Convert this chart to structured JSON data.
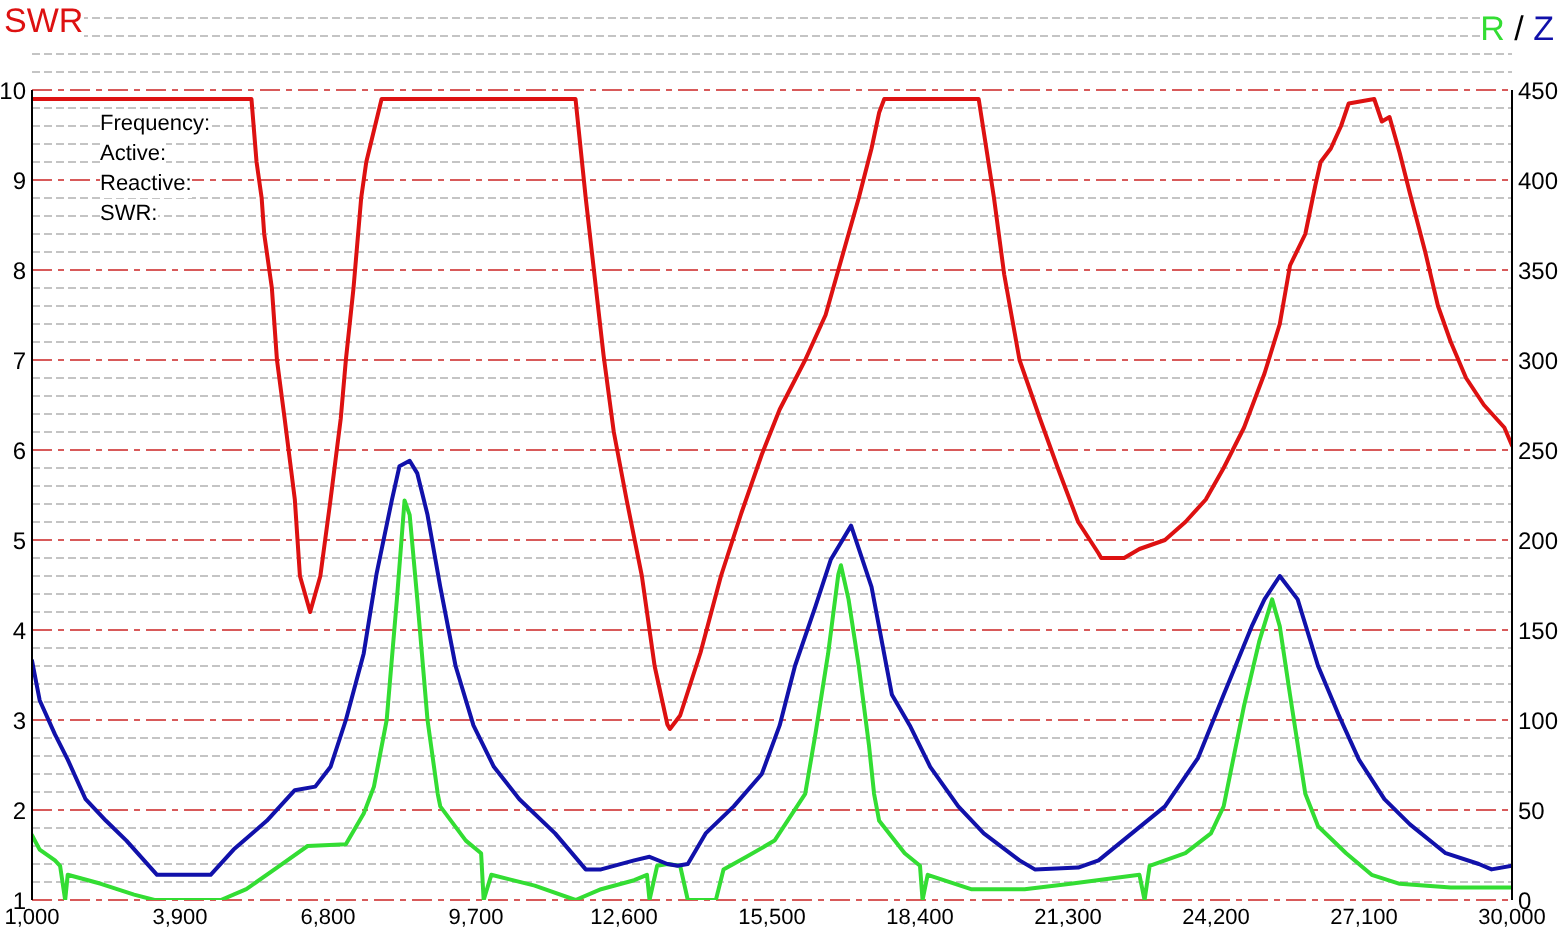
{
  "chart_data": {
    "type": "line",
    "ylabel": "SWR",
    "y2label": "R / Z",
    "annotations": [
      "Frequency:",
      "Active:",
      "Reactive:",
      "SWR:"
    ],
    "xlim": [
      1000,
      30000
    ],
    "xticks": [
      {
        "value": 1000,
        "label": "1,000"
      },
      {
        "value": 3900,
        "label": "3,900"
      },
      {
        "value": 6800,
        "label": "6,800"
      },
      {
        "value": 9700,
        "label": "9,700"
      },
      {
        "value": 12600,
        "label": "12,600"
      },
      {
        "value": 15500,
        "label": "15,500"
      },
      {
        "value": 18400,
        "label": "18,400"
      },
      {
        "value": 21300,
        "label": "21,300"
      },
      {
        "value": 24200,
        "label": "24,200"
      },
      {
        "value": 27100,
        "label": "27,100"
      },
      {
        "value": 30000,
        "label": "30,000"
      }
    ],
    "ylim": [
      1,
      10
    ],
    "yticks": [
      1,
      2,
      3,
      4,
      5,
      6,
      7,
      8,
      9,
      10
    ],
    "y2lim": [
      0,
      450
    ],
    "y2ticks": [
      0,
      50,
      100,
      150,
      200,
      250,
      300,
      350,
      400,
      450
    ],
    "grid": "y",
    "series": [
      {
        "color": "#dd1111",
        "x": [
          1000,
          5300,
          5400,
          5500,
          5550,
          5700,
          5800,
          5950,
          6150,
          6250,
          6450,
          6650,
          6850,
          7050,
          7150,
          7300,
          7450,
          7550,
          7850,
          11650,
          11850,
          12000,
          12200,
          12400,
          12650,
          12950,
          13200,
          13450,
          13500,
          13700,
          14100,
          14500,
          14900,
          15300,
          15650,
          16150,
          16550,
          16900,
          17200,
          17450,
          17600,
          17700,
          19550,
          19850,
          20050,
          20350,
          20750,
          21100,
          21500,
          21900,
          21950,
          22400,
          22700,
          23200,
          23600,
          24000,
          24350,
          24750,
          25150,
          25450,
          25650,
          25950,
          26150,
          26250,
          26450,
          26650,
          26800,
          27300,
          27450,
          27600,
          27800,
          28000,
          28300,
          28550,
          28800,
          29100,
          29450,
          29850,
          30000
        ],
        "values": [
          9.9,
          9.9,
          9.2,
          8.8,
          8.4,
          7.8,
          7.0,
          6.35,
          5.45,
          4.6,
          4.2,
          4.6,
          5.45,
          6.35,
          7.0,
          7.8,
          8.8,
          9.2,
          9.9,
          9.9,
          8.8,
          8.05,
          7.05,
          6.2,
          5.45,
          4.6,
          3.6,
          2.95,
          2.9,
          3.05,
          3.75,
          4.6,
          5.3,
          5.95,
          6.45,
          7.0,
          7.5,
          8.2,
          8.8,
          9.35,
          9.75,
          9.9,
          9.9,
          8.8,
          7.95,
          7.0,
          6.35,
          5.8,
          5.2,
          4.85,
          4.8,
          4.8,
          4.9,
          5.0,
          5.2,
          5.45,
          5.8,
          6.25,
          6.85,
          7.4,
          8.05,
          8.4,
          8.95,
          9.2,
          9.35,
          9.6,
          9.85,
          9.9,
          9.65,
          9.7,
          9.3,
          8.85,
          8.2,
          7.6,
          7.2,
          6.8,
          6.5,
          6.25,
          6.05
        ]
      },
      {
        "color": "#33dd33",
        "axis": "y2",
        "x": [
          1000,
          1150,
          1450,
          1550,
          1650,
          1700,
          2350,
          3000,
          3400,
          4700,
          5200,
          5850,
          6400,
          7150,
          7500,
          7700,
          7950,
          8150,
          8300,
          8400,
          8550,
          8750,
          8950,
          9000,
          9500,
          9800,
          9850,
          10000,
          10850,
          11650,
          12150,
          12800,
          13050,
          13100,
          13250,
          13450,
          13700,
          13850,
          14400,
          14550,
          15000,
          15550,
          16150,
          16350,
          16600,
          16800,
          16850,
          17000,
          17200,
          17400,
          17500,
          17600,
          18100,
          18400,
          18450,
          18550,
          19400,
          20450,
          21350,
          22700,
          22800,
          22900,
          23600,
          24100,
          24350,
          24750,
          25050,
          25300,
          25450,
          25650,
          25950,
          26200,
          26750,
          27250,
          27800,
          28800,
          30000
        ],
        "values": [
          36,
          28,
          22,
          19,
          0,
          14,
          9,
          3,
          0,
          0,
          6,
          19,
          30,
          31,
          48,
          63,
          100,
          167,
          222,
          214,
          167,
          100,
          59,
          52,
          33,
          26,
          0,
          14,
          8,
          0,
          6,
          11,
          14,
          0,
          19,
          20,
          19,
          0,
          0,
          17,
          24,
          33,
          59,
          92,
          137,
          181,
          186,
          167,
          130,
          86,
          59,
          44,
          26,
          19,
          0,
          14,
          6,
          6,
          9,
          14,
          0,
          19,
          26,
          37,
          52,
          108,
          144,
          167,
          152,
          114,
          59,
          41,
          26,
          14,
          9,
          7,
          7
        ]
      },
      {
        "color": "#1111aa",
        "axis": "y2",
        "x": [
          1000,
          1150,
          1450,
          1700,
          2050,
          2450,
          2850,
          3450,
          4500,
          4950,
          5600,
          6150,
          6550,
          6850,
          7150,
          7500,
          7750,
          8050,
          8200,
          8400,
          8550,
          8750,
          9000,
          9300,
          9650,
          10050,
          10550,
          11250,
          11850,
          12150,
          12800,
          13100,
          13450,
          13650,
          13850,
          14200,
          14750,
          15300,
          15650,
          15950,
          16350,
          16650,
          17050,
          17450,
          17850,
          18200,
          18600,
          19150,
          19650,
          20350,
          20650,
          21500,
          21900,
          22550,
          23200,
          23850,
          24350,
          24900,
          25150,
          25450,
          25800,
          26200,
          26600,
          27000,
          27500,
          28000,
          28700,
          29350,
          29600,
          30000
        ],
        "values": [
          133,
          111,
          92,
          78,
          56,
          44,
          33,
          14,
          14,
          28,
          44,
          61,
          63,
          74,
          100,
          137,
          181,
          222,
          241,
          244,
          237,
          214,
          174,
          130,
          97,
          74,
          56,
          37,
          17,
          17,
          22,
          24,
          20,
          19,
          20,
          37,
          52,
          70,
          97,
          130,
          163,
          189,
          208,
          174,
          114,
          97,
          74,
          52,
          37,
          22,
          17,
          18,
          22,
          37,
          52,
          79,
          114,
          152,
          167,
          180,
          167,
          130,
          103,
          78,
          56,
          42,
          26,
          20,
          17,
          19
        ]
      }
    ]
  }
}
